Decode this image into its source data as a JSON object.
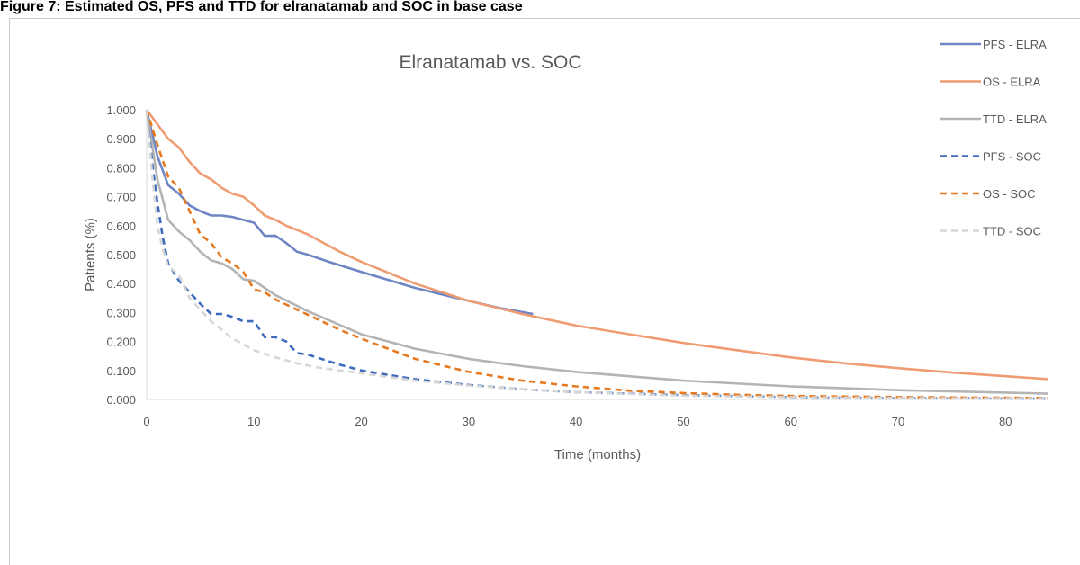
{
  "figure": {
    "caption": "Figure 7: Estimated OS, PFS and TTD for elranatamab and SOC in base case"
  },
  "colors": {
    "elra_pfs": "#6f86c4",
    "elra_os": "#ef9c73",
    "elra_ttd": "#b4b4b4",
    "soc_pfs": "#3f6bbf",
    "soc_os": "#e6781f",
    "soc_ttd": "#d6d6d6",
    "axis": "#d9d9d9",
    "text": "#595959"
  },
  "chart_data": {
    "type": "line",
    "title": "Elranatamab vs. SOC",
    "xlabel": "Time (months)",
    "ylabel": "Patients (%)",
    "xlim": [
      0,
      84
    ],
    "ylim": [
      0,
      1
    ],
    "xticks": [
      "0",
      "10",
      "20",
      "30",
      "40",
      "50",
      "60",
      "70",
      "80"
    ],
    "yticks": [
      "0.000",
      "0.100",
      "0.200",
      "0.300",
      "0.400",
      "0.500",
      "0.600",
      "0.700",
      "0.800",
      "0.900",
      "1.000"
    ],
    "grid": false,
    "legend_position": "right",
    "series": [
      {
        "name": "PFS - ELRA",
        "style": "solid",
        "color": "#6f86c4",
        "x": [
          0,
          0.5,
          1,
          1.5,
          2,
          3,
          4,
          5,
          6,
          7,
          8,
          9,
          10,
          11,
          12,
          13,
          14,
          15,
          17,
          20,
          25,
          30,
          33,
          36
        ],
        "y": [
          1.0,
          0.92,
          0.84,
          0.79,
          0.74,
          0.71,
          0.67,
          0.65,
          0.635,
          0.635,
          0.63,
          0.62,
          0.61,
          0.565,
          0.565,
          0.54,
          0.51,
          0.5,
          0.475,
          0.44,
          0.385,
          0.34,
          0.315,
          0.295
        ]
      },
      {
        "name": "OS - ELRA",
        "style": "solid",
        "color": "#ef9c73",
        "x": [
          0,
          1,
          2,
          3,
          4,
          5,
          6,
          7,
          8,
          9,
          10,
          11,
          12,
          13,
          14,
          15,
          18,
          20,
          25,
          30,
          35,
          40,
          45,
          50,
          55,
          60,
          65,
          70,
          75,
          80,
          84
        ],
        "y": [
          1.0,
          0.95,
          0.9,
          0.87,
          0.82,
          0.78,
          0.76,
          0.73,
          0.71,
          0.7,
          0.67,
          0.635,
          0.62,
          0.6,
          0.585,
          0.57,
          0.51,
          0.475,
          0.4,
          0.34,
          0.295,
          0.255,
          0.225,
          0.195,
          0.17,
          0.145,
          0.125,
          0.108,
          0.093,
          0.08,
          0.07
        ]
      },
      {
        "name": "TTD - ELRA",
        "style": "solid",
        "color": "#b4b4b4",
        "x": [
          0,
          0.5,
          1,
          1.5,
          2,
          3,
          4,
          5,
          6,
          7,
          8,
          9,
          10,
          12,
          15,
          20,
          25,
          30,
          35,
          40,
          50,
          60,
          70,
          84
        ],
        "y": [
          1.0,
          0.88,
          0.76,
          0.69,
          0.62,
          0.58,
          0.55,
          0.51,
          0.48,
          0.47,
          0.45,
          0.415,
          0.41,
          0.36,
          0.305,
          0.225,
          0.175,
          0.14,
          0.115,
          0.095,
          0.065,
          0.045,
          0.032,
          0.02
        ]
      },
      {
        "name": "PFS - SOC",
        "style": "dashed",
        "color": "#3f6bbf",
        "x": [
          0,
          0.5,
          1,
          1.5,
          2,
          3,
          4,
          5,
          6,
          7,
          8,
          9,
          10,
          11,
          12,
          13,
          14,
          15,
          18,
          20,
          25,
          30,
          35,
          40,
          50,
          60,
          70,
          84
        ],
        "y": [
          1.0,
          0.82,
          0.68,
          0.56,
          0.47,
          0.41,
          0.37,
          0.33,
          0.295,
          0.295,
          0.285,
          0.27,
          0.27,
          0.215,
          0.215,
          0.2,
          0.16,
          0.155,
          0.12,
          0.1,
          0.07,
          0.05,
          0.035,
          0.025,
          0.015,
          0.008,
          0.005,
          0.003
        ]
      },
      {
        "name": "OS - SOC",
        "style": "dashed",
        "color": "#e6781f",
        "x": [
          0,
          1,
          2,
          3,
          4,
          5,
          6,
          7,
          8,
          9,
          10,
          11,
          12,
          14,
          16,
          18,
          20,
          25,
          30,
          35,
          40,
          45,
          50,
          55,
          60,
          70,
          84
        ],
        "y": [
          1.0,
          0.88,
          0.77,
          0.73,
          0.65,
          0.57,
          0.54,
          0.49,
          0.47,
          0.44,
          0.38,
          0.37,
          0.345,
          0.31,
          0.275,
          0.24,
          0.21,
          0.14,
          0.095,
          0.065,
          0.045,
          0.03,
          0.022,
          0.016,
          0.012,
          0.008,
          0.005
        ]
      },
      {
        "name": "TTD - SOC",
        "style": "dashed",
        "color": "#d6d6d6",
        "x": [
          0,
          0.5,
          1,
          1.5,
          2,
          3,
          4,
          5,
          6,
          7,
          8,
          9,
          10,
          12,
          14,
          16,
          20,
          25,
          30,
          35,
          40,
          50,
          60,
          70,
          84
        ],
        "y": [
          1.0,
          0.78,
          0.6,
          0.52,
          0.46,
          0.43,
          0.35,
          0.31,
          0.27,
          0.24,
          0.21,
          0.19,
          0.17,
          0.145,
          0.125,
          0.11,
          0.09,
          0.065,
          0.048,
          0.035,
          0.025,
          0.013,
          0.008,
          0.005,
          0.003
        ]
      }
    ]
  }
}
